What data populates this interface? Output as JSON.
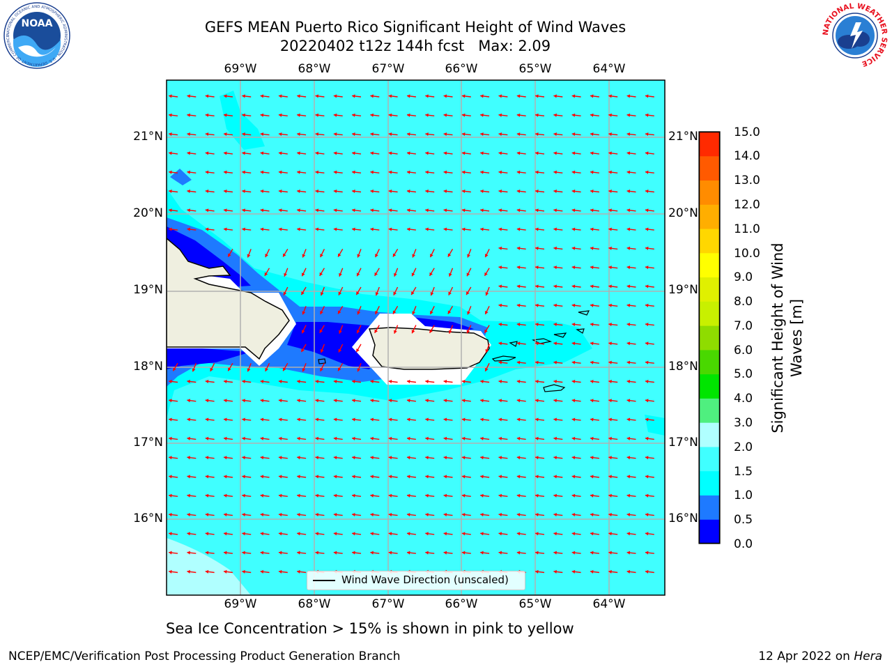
{
  "title": {
    "line1": "GEFS MEAN Puerto Rico Significant Height of Wind Waves",
    "line2": "20220402 t12z 144h fcst   Max: 2.09"
  },
  "lon_labels": [
    "69°W",
    "68°W",
    "67°W",
    "66°W",
    "65°W",
    "64°W"
  ],
  "lat_labels": [
    "21°N",
    "20°N",
    "19°N",
    "18°N",
    "17°N",
    "16°N"
  ],
  "colorbar": {
    "label": "Significant Height of Wind Waves [m]",
    "ticks": [
      "15.0",
      "14.0",
      "13.0",
      "12.0",
      "11.0",
      "10.0",
      "9.0",
      "8.0",
      "7.0",
      "6.0",
      "5.0",
      "4.0",
      "3.0",
      "2.0",
      "1.5",
      "1.0",
      "0.5",
      "0.0"
    ],
    "levels": [
      0,
      0.5,
      1.0,
      1.5,
      2.0,
      3.0,
      4.0,
      5.0,
      6.0,
      7.0,
      8.0,
      9.0,
      10.0,
      11.0,
      12.0,
      13.0,
      14.0,
      15.0
    ],
    "colors": [
      "#0000ff",
      "#1e7aff",
      "#00ffff",
      "#40ffff",
      "#b0ffff",
      "#4fef7f",
      "#00e500",
      "#49d800",
      "#8fdc00",
      "#c8f000",
      "#e0f000",
      "#ffff00",
      "#ffd700",
      "#ffae00",
      "#ff8c00",
      "#ff5a00",
      "#ff2a00"
    ]
  },
  "legend": {
    "label": "Wind Wave Direction (unscaled)"
  },
  "subtitle": "Sea Ice Concentration > 15% is shown in pink to yellow",
  "footer": {
    "left": "NCEP/EMC/Verification Post Processing Product Generation Branch",
    "date": "12 Apr 2022 on",
    "host": "Hera"
  },
  "logos": {
    "noaa": {
      "text": "NOAA",
      "ring_text": "NATIONAL OCEANIC AND ATMOSPHERIC ADMINISTRATION · U.S. DEPARTMENT OF COMMERCE"
    },
    "nws": {
      "ring_text": "NATIONAL WEATHER SERVICE"
    }
  },
  "map_colors": {
    "ocean_default": "#40ffff",
    "land": "#efefe0",
    "grid": "#b0b0b0",
    "arrow": "#ff0000"
  }
}
